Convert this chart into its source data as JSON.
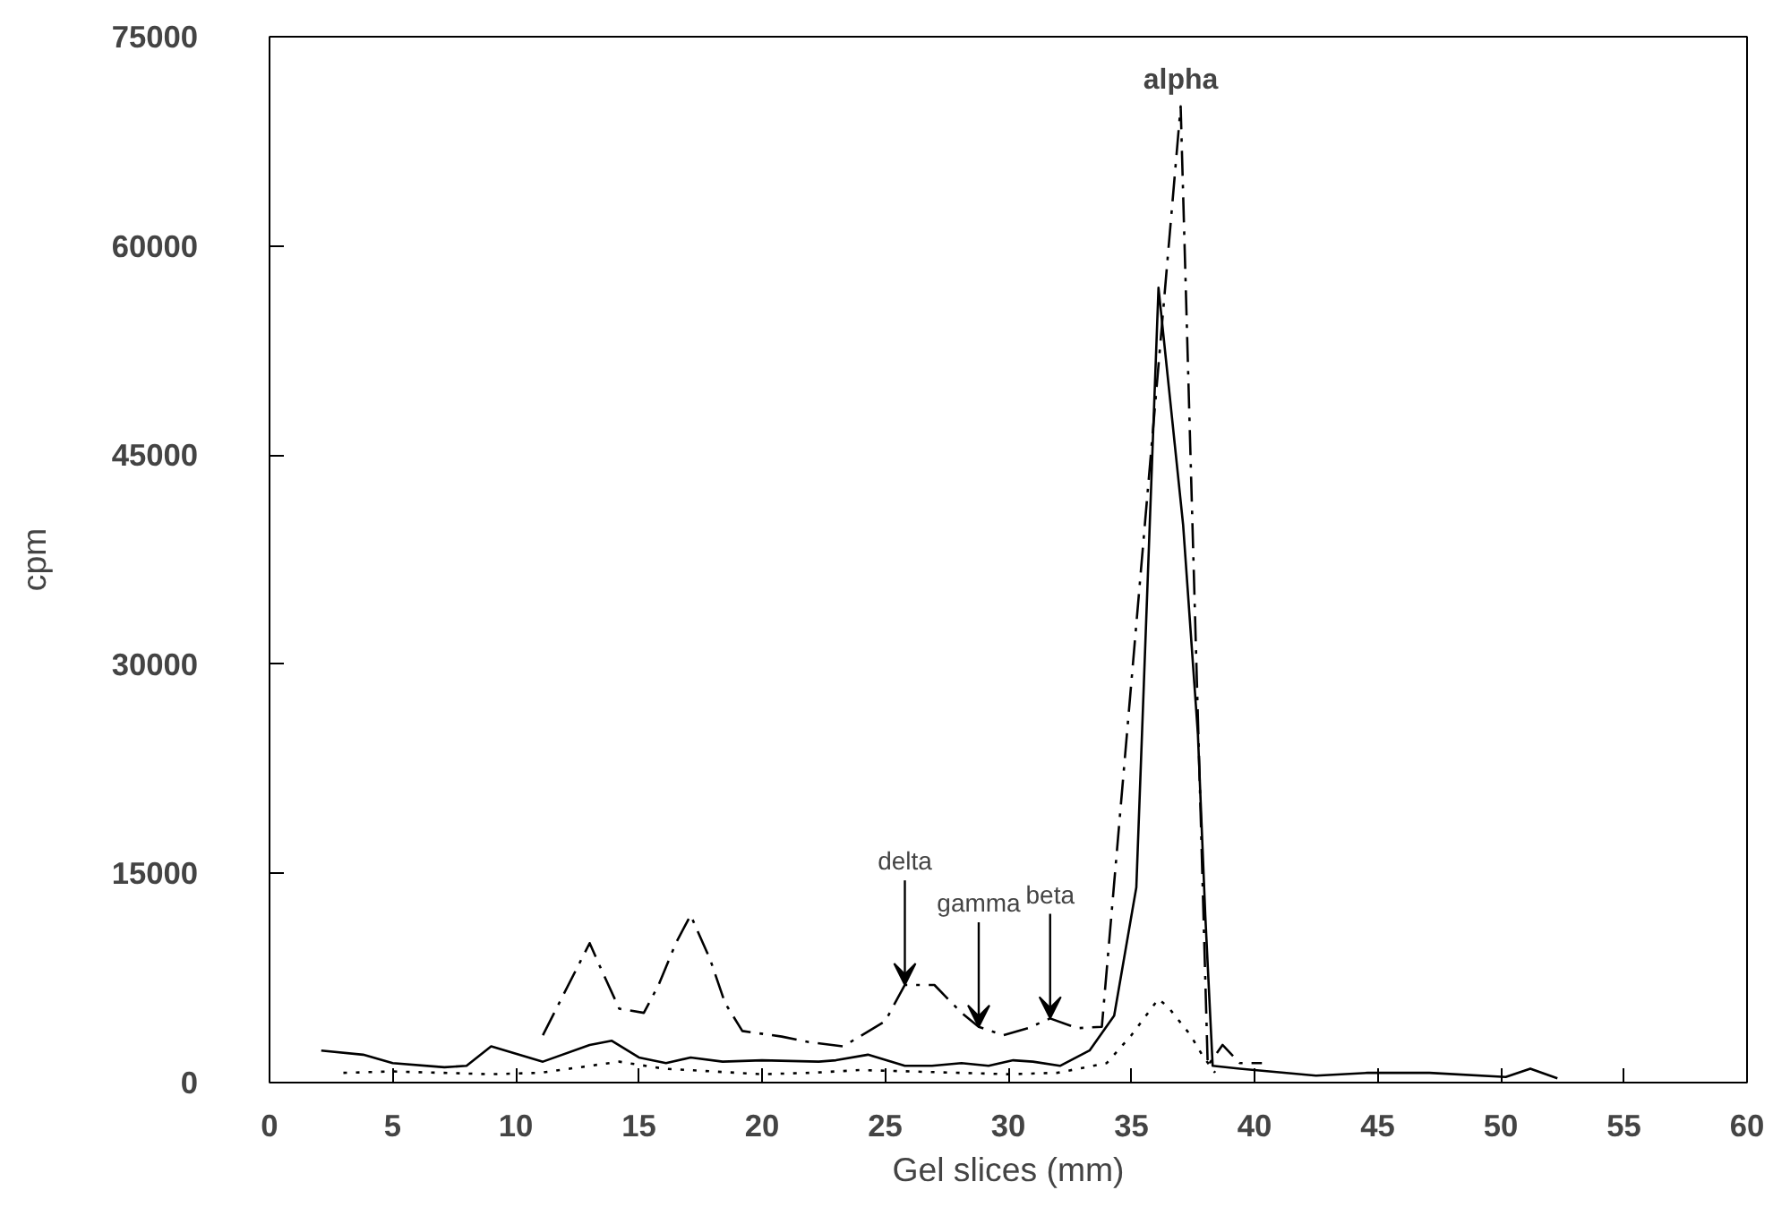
{
  "chart_data": {
    "type": "line",
    "xlabel": "Gel slices (mm)",
    "ylabel": "cpm",
    "xlim": [
      0,
      60
    ],
    "ylim": [
      0,
      75000
    ],
    "xticks": [
      0,
      5,
      10,
      15,
      20,
      25,
      30,
      35,
      40,
      45,
      50,
      55,
      60
    ],
    "yticks": [
      0,
      15000,
      30000,
      45000,
      60000,
      75000
    ],
    "grid": false,
    "marker": "none",
    "series": [
      {
        "color": "#000000",
        "line_style": "solid",
        "x": [
          2.1,
          3.8,
          5,
          7.1,
          8,
          9,
          11.1,
          13,
          13.9,
          15,
          16.1,
          17.1,
          18.4,
          20,
          22.3,
          23,
          24.3,
          25.8,
          26.9,
          28.1,
          29.2,
          30.2,
          31,
          32.1,
          33.3,
          34.3,
          35.2,
          36.1,
          37.1,
          37.7,
          38,
          38.3,
          39.4,
          42.5,
          44.6,
          47.1,
          50.2,
          51.2,
          52.3
        ],
        "values": [
          2300,
          2000,
          1400,
          1100,
          1200,
          2600,
          1500,
          2700,
          3000,
          1800,
          1400,
          1800,
          1500,
          1600,
          1500,
          1600,
          2000,
          1200,
          1200,
          1400,
          1200,
          1600,
          1500,
          1200,
          2300,
          4800,
          14000,
          57000,
          40000,
          25000,
          12000,
          1200,
          1000,
          500,
          700,
          700,
          400,
          1000,
          300
        ]
      },
      {
        "color": "#000000",
        "line_style": "dashdot",
        "x": [
          11.1,
          13,
          13.4,
          14.2,
          15.2,
          15.8,
          16.5,
          17.1,
          17.9,
          18.5,
          19.2,
          20.8,
          21.9,
          23.3,
          25,
          25.8,
          27,
          28.1,
          28.8,
          29.8,
          30.8,
          31.7,
          32.8,
          33.8,
          37,
          38.1,
          38.7,
          39.4,
          40.3
        ],
        "values": [
          3400,
          10000,
          8400,
          5300,
          5000,
          7000,
          10000,
          12000,
          8800,
          5700,
          3700,
          3300,
          2900,
          2600,
          4400,
          7000,
          7000,
          5000,
          4000,
          3400,
          3900,
          4600,
          3900,
          4000,
          70000,
          1200,
          2700,
          1400,
          1400
        ]
      },
      {
        "color": "#000000",
        "line_style": "dotted",
        "x": [
          3,
          5,
          7,
          9,
          11,
          13,
          14.2,
          16,
          18,
          20,
          22,
          24,
          26,
          28,
          30,
          32,
          34,
          35,
          36.1,
          36.5,
          37.4,
          37.9,
          38.4
        ],
        "values": [
          700,
          800,
          700,
          600,
          700,
          1200,
          1500,
          1000,
          800,
          600,
          700,
          900,
          800,
          700,
          600,
          700,
          1400,
          3400,
          6000,
          5400,
          3400,
          1900,
          700
        ]
      }
    ],
    "annotations": [
      {
        "text": "alpha",
        "x": 37,
        "y": 70000
      },
      {
        "text": "delta",
        "x": 25.8,
        "y": 7000
      },
      {
        "text": "gamma",
        "x": 28.8,
        "y": 4000
      },
      {
        "text": "beta",
        "x": 31.7,
        "y": 4600
      }
    ]
  }
}
